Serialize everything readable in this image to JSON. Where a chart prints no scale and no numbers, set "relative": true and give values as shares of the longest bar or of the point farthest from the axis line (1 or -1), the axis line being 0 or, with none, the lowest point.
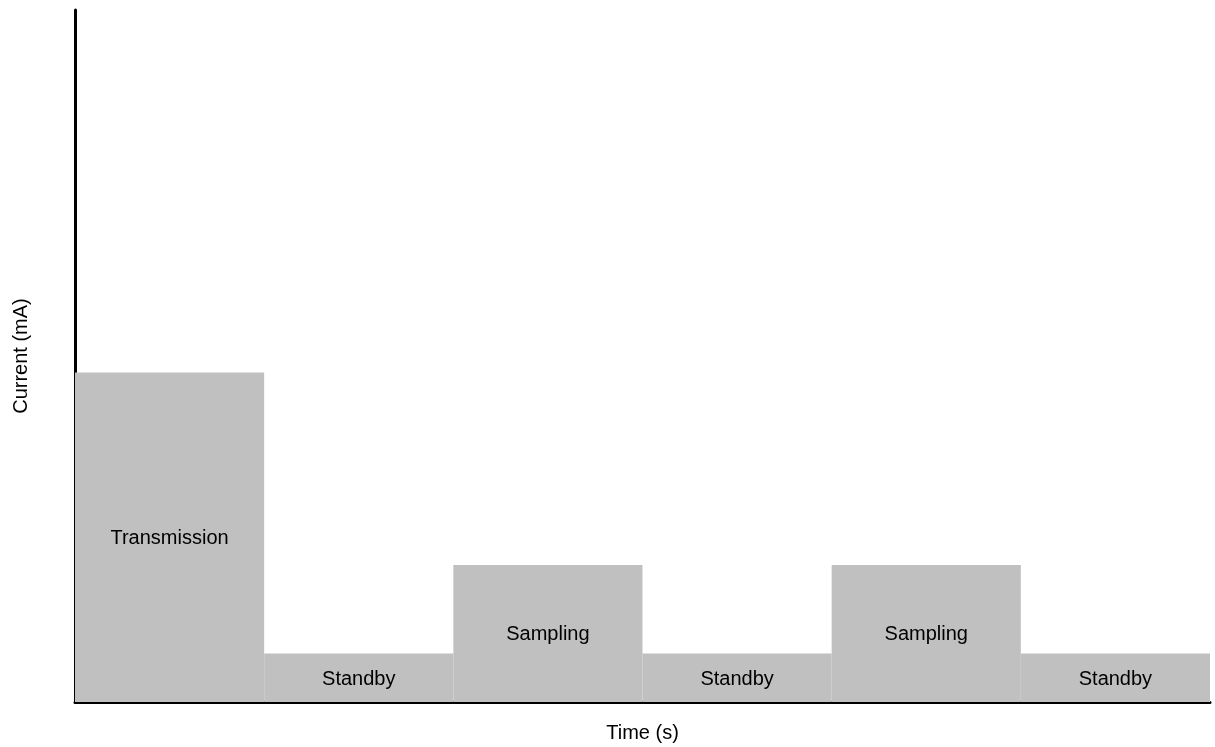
{
  "chart_data": {
    "type": "bar",
    "xlabel": "Time (s)",
    "ylabel": "Current (mA)",
    "relative": true,
    "categories": [
      "Transmission",
      "Standby",
      "Sampling",
      "Standby",
      "Sampling",
      "Standby"
    ],
    "values": [
      1,
      0.147,
      0.416,
      0.147,
      0.416,
      0.147
    ],
    "color": "#c0c0c0",
    "grid": false
  }
}
